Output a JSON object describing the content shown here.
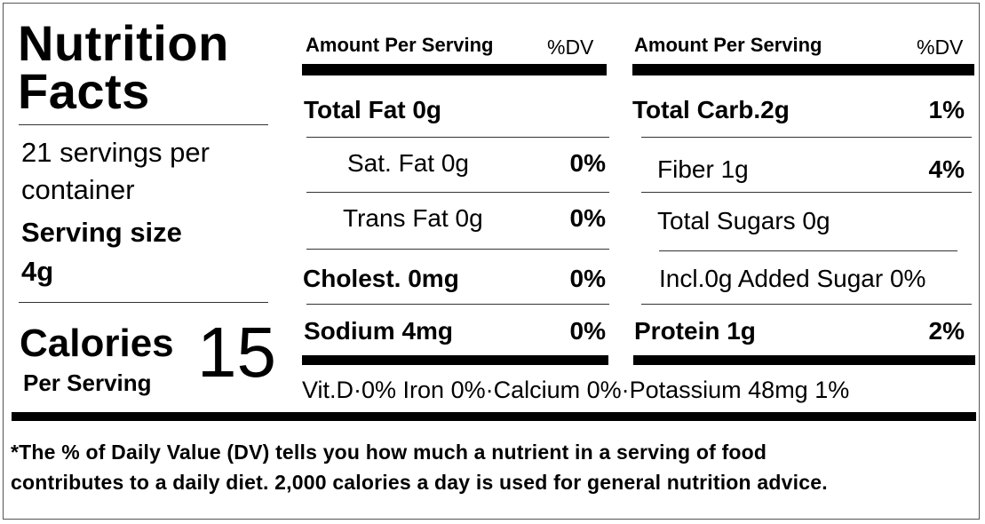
{
  "title_line1": "Nutrition",
  "title_line2": "Facts",
  "servings_line1": "21 servings per",
  "servings_line2": "container",
  "serving_size_label": "Serving size",
  "serving_size_value": "4g",
  "calories_label": "Calories",
  "calories_sub": "Per Serving",
  "calories_value": "15",
  "left_col": {
    "header_amount": "Amount Per Serving",
    "header_dv": "%DV",
    "rows": [
      {
        "label": "Total Fat 0g",
        "dv": ""
      },
      {
        "label": "Sat. Fat 0g",
        "dv": "0%"
      },
      {
        "label": "Trans Fat 0g",
        "dv": "0%"
      },
      {
        "label": "Cholest. 0mg",
        "dv": "0%"
      },
      {
        "label": "Sodium 4mg",
        "dv": "0%"
      }
    ]
  },
  "right_col": {
    "header_amount": "Amount Per Serving",
    "header_dv": "%DV",
    "rows": [
      {
        "label": "Total Carb.2g",
        "dv": "1%"
      },
      {
        "label": "Fiber 1g",
        "dv": "4%"
      },
      {
        "label": "Total Sugars  0g",
        "dv": ""
      },
      {
        "label": "Incl.0g Added Sugar 0%",
        "dv": ""
      },
      {
        "label": "Protein 1g",
        "dv": "2%"
      }
    ]
  },
  "vitamins_line": "Vit.D·0%  Iron 0%·Calcium 0%·Potassium 48mg 1%",
  "footnote_line1": "*The % of Daily Value (DV) tells you how much a nutrient in a serving of food",
  "footnote_line2": "contributes to a daily diet. 2,000 calories a day is used for general nutrition advice."
}
